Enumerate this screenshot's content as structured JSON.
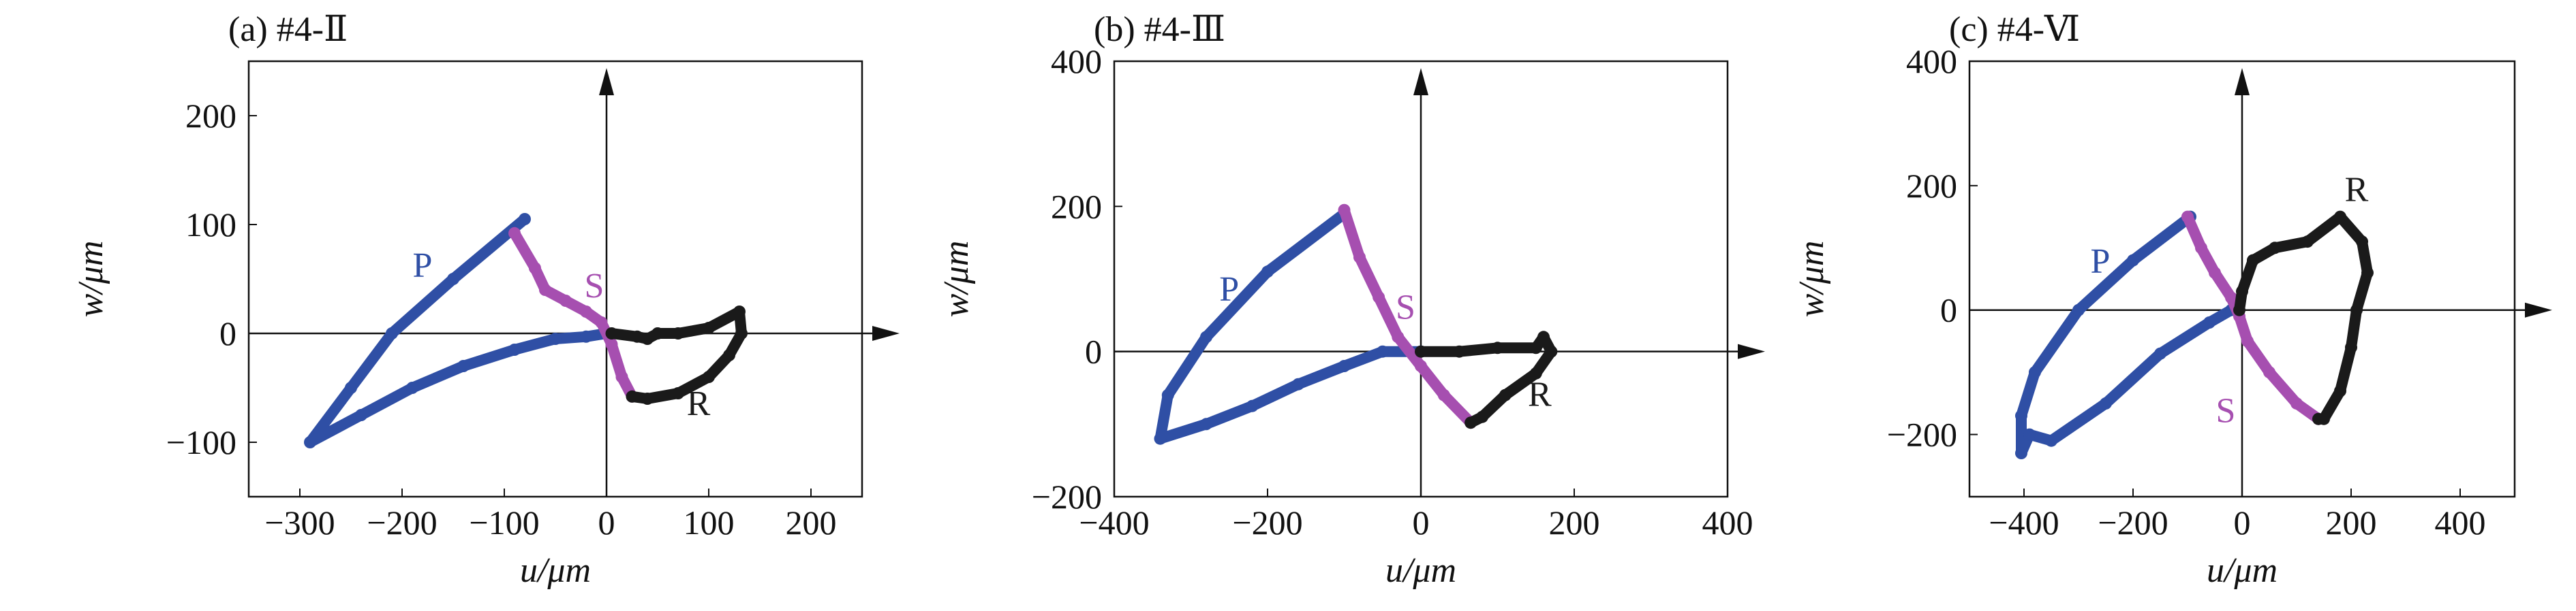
{
  "colors": {
    "P": "#2f4fa5",
    "S": "#a64fb0",
    "R": "#1a1a1a"
  },
  "chart_data": [
    {
      "type": "line",
      "title": "(a) #4-Ⅱ",
      "xlabel": "u/μm",
      "ylabel": "w/μm",
      "xlim": [
        -350,
        250
      ],
      "ylim": [
        -150,
        250
      ],
      "xticks": [
        -300,
        -200,
        -100,
        0,
        100,
        200
      ],
      "xtick_labels": [
        "−300",
        "−200",
        "−100",
        "0",
        "100",
        "200"
      ],
      "yticks": [
        -100,
        0,
        100,
        200
      ],
      "ytick_labels": [
        "−100",
        "0",
        "100",
        "200"
      ],
      "grid": false,
      "series": [
        {
          "name": "P",
          "points": [
            [
              -80,
              105
            ],
            [
              -150,
              50
            ],
            [
              -210,
              0
            ],
            [
              -250,
              -50
            ],
            [
              -290,
              -100
            ],
            [
              -240,
              -75
            ],
            [
              -190,
              -50
            ],
            [
              -140,
              -30
            ],
            [
              -90,
              -15
            ],
            [
              -50,
              -5
            ],
            [
              -20,
              -3
            ],
            [
              0,
              0
            ]
          ]
        },
        {
          "name": "S",
          "points": [
            [
              -90,
              92
            ],
            [
              -70,
              60
            ],
            [
              -60,
              40
            ],
            [
              -40,
              30
            ],
            [
              -20,
              20
            ],
            [
              -5,
              10
            ],
            [
              5,
              -10
            ],
            [
              15,
              -40
            ],
            [
              25,
              -58
            ]
          ]
        },
        {
          "name": "R",
          "points": [
            [
              5,
              0
            ],
            [
              30,
              -3
            ],
            [
              40,
              -5
            ],
            [
              50,
              0
            ],
            [
              70,
              0
            ],
            [
              100,
              5
            ],
            [
              130,
              20
            ],
            [
              132,
              0
            ],
            [
              120,
              -20
            ],
            [
              100,
              -40
            ],
            [
              70,
              -55
            ],
            [
              40,
              -60
            ],
            [
              25,
              -58
            ]
          ]
        }
      ],
      "annotations": [
        {
          "text": "P",
          "x": -180,
          "y": 52
        },
        {
          "text": "S",
          "x": -12,
          "y": 33
        },
        {
          "text": "R",
          "x": 90,
          "y": -75
        }
      ]
    },
    {
      "type": "line",
      "title": "(b) #4-Ⅲ",
      "xlabel": "u/μm",
      "ylabel": "w/μm",
      "xlim": [
        -400,
        400
      ],
      "ylim": [
        -200,
        400
      ],
      "xticks": [
        -400,
        -200,
        0,
        200,
        400
      ],
      "xtick_labels": [
        "−400",
        "−200",
        "0",
        "200",
        "400"
      ],
      "yticks": [
        -200,
        0,
        200,
        400
      ],
      "ytick_labels": [
        "−200",
        "0",
        "200",
        "400"
      ],
      "grid": false,
      "series": [
        {
          "name": "P",
          "points": [
            [
              -100,
              190
            ],
            [
              -200,
              110
            ],
            [
              -280,
              20
            ],
            [
              -330,
              -60
            ],
            [
              -340,
              -120
            ],
            [
              -280,
              -100
            ],
            [
              -220,
              -75
            ],
            [
              -160,
              -45
            ],
            [
              -100,
              -20
            ],
            [
              -50,
              0
            ],
            [
              0,
              0
            ]
          ]
        },
        {
          "name": "S",
          "points": [
            [
              -100,
              195
            ],
            [
              -80,
              130
            ],
            [
              -55,
              75
            ],
            [
              -30,
              20
            ],
            [
              0,
              -20
            ],
            [
              30,
              -60
            ],
            [
              65,
              -98
            ]
          ]
        },
        {
          "name": "R",
          "points": [
            [
              0,
              0
            ],
            [
              50,
              0
            ],
            [
              100,
              5
            ],
            [
              150,
              5
            ],
            [
              160,
              20
            ],
            [
              170,
              0
            ],
            [
              150,
              -30
            ],
            [
              110,
              -60
            ],
            [
              80,
              -90
            ],
            [
              65,
              -98
            ]
          ]
        }
      ],
      "annotations": [
        {
          "text": "P",
          "x": -250,
          "y": 70
        },
        {
          "text": "S",
          "x": -20,
          "y": 45
        },
        {
          "text": "R",
          "x": 155,
          "y": -75
        }
      ]
    },
    {
      "type": "line",
      "title": "(c) #4-Ⅵ",
      "xlabel": "u/μm",
      "ylabel": "w/μm",
      "xlim": [
        -500,
        500
      ],
      "ylim": [
        -300,
        400
      ],
      "xticks": [
        -400,
        -200,
        0,
        200,
        400
      ],
      "xtick_labels": [
        "−400",
        "−200",
        "0",
        "200",
        "400"
      ],
      "yticks": [
        -200,
        0,
        200,
        400
      ],
      "ytick_labels": [
        "−200",
        "0",
        "200",
        "400"
      ],
      "grid": false,
      "series": [
        {
          "name": "P",
          "points": [
            [
              -95,
              150
            ],
            [
              -200,
              80
            ],
            [
              -300,
              0
            ],
            [
              -380,
              -100
            ],
            [
              -405,
              -170
            ],
            [
              -405,
              -230
            ],
            [
              -390,
              -200
            ],
            [
              -350,
              -210
            ],
            [
              -250,
              -150
            ],
            [
              -150,
              -70
            ],
            [
              -60,
              -20
            ],
            [
              -20,
              0
            ]
          ]
        },
        {
          "name": "S",
          "points": [
            [
              -100,
              150
            ],
            [
              -75,
              100
            ],
            [
              -50,
              60
            ],
            [
              -20,
              20
            ],
            [
              -5,
              -10
            ],
            [
              10,
              -50
            ],
            [
              50,
              -100
            ],
            [
              100,
              -150
            ],
            [
              140,
              -175
            ]
          ]
        },
        {
          "name": "R",
          "points": [
            [
              -5,
              0
            ],
            [
              0,
              30
            ],
            [
              20,
              80
            ],
            [
              60,
              100
            ],
            [
              120,
              110
            ],
            [
              180,
              150
            ],
            [
              220,
              110
            ],
            [
              230,
              60
            ],
            [
              210,
              0
            ],
            [
              200,
              -60
            ],
            [
              180,
              -130
            ],
            [
              150,
              -175
            ],
            [
              140,
              -175
            ]
          ]
        }
      ],
      "annotations": [
        {
          "text": "P",
          "x": -260,
          "y": 60
        },
        {
          "text": "S",
          "x": -30,
          "y": -180
        },
        {
          "text": "R",
          "x": 210,
          "y": 175
        }
      ]
    }
  ]
}
